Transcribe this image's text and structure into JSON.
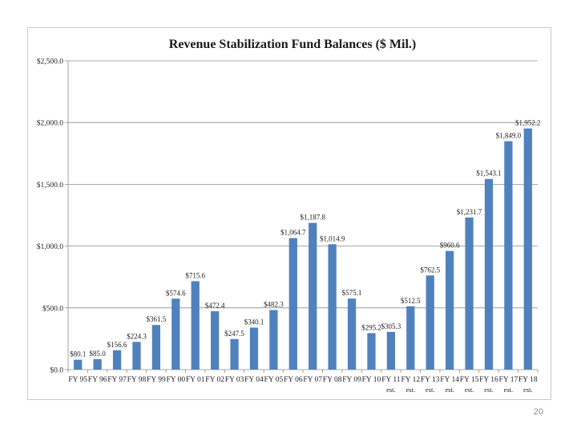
{
  "page": {
    "number": "20"
  },
  "chart_data": {
    "type": "bar",
    "title": "Revenue Stabilization Fund Balances ($ Mil.)",
    "xlabel": "",
    "ylabel": "",
    "ylim": [
      0,
      2500
    ],
    "yticks": [
      0,
      500,
      1000,
      1500,
      2000,
      2500
    ],
    "ytick_labels": [
      "$0.0",
      "$500.0",
      "$1,000.0",
      "$1,500.0",
      "$2,000.0",
      "$2,500.0"
    ],
    "grid": true,
    "legend": "none",
    "bar_color": "#4f81bd",
    "categories": [
      "FY 95",
      "FY 96",
      "FY 97",
      "FY 98",
      "FY 99",
      "FY 00",
      "FY 01",
      "FY 02",
      "FY 03",
      "FY 04",
      "FY 05",
      "FY 06",
      "FY 07",
      "FY 08",
      "FY 09",
      "FY 10",
      "FY 11",
      "FY 12",
      "FY 13",
      "FY 14",
      "FY 15",
      "FY 16",
      "FY 17",
      "FY 18"
    ],
    "category_sublabels": [
      "",
      "",
      "",
      "",
      "",
      "",
      "",
      "",
      "",
      "",
      "",
      "",
      "",
      "",
      "",
      "",
      "est.",
      "est.",
      "est.",
      "est.",
      "est.",
      "est.",
      "est.",
      "est."
    ],
    "values": [
      80.1,
      85.0,
      156.6,
      224.3,
      361.5,
      574.6,
      715.6,
      472.4,
      247.5,
      340.1,
      482.3,
      1064.7,
      1187.8,
      1014.9,
      575.1,
      295.2,
      305.3,
      512.5,
      762.5,
      960.6,
      1231.7,
      1543.1,
      1849.0,
      1952.2
    ],
    "data_labels": [
      "$80.1",
      "$85.0",
      "$156.6",
      "$224.3",
      "$361.5",
      "$574.6",
      "$715.6",
      "$472.4",
      "$247.5",
      "$340.1",
      "$482.3",
      "$1,064.7",
      "$1,187.8",
      "$1,014.9",
      "$575.1",
      "$295.2",
      "$305.3",
      "$512.5",
      "$762.5",
      "$960.6",
      "$1,231.7",
      "$1,543.1",
      "$1,849.0",
      "$1,952.2"
    ]
  }
}
